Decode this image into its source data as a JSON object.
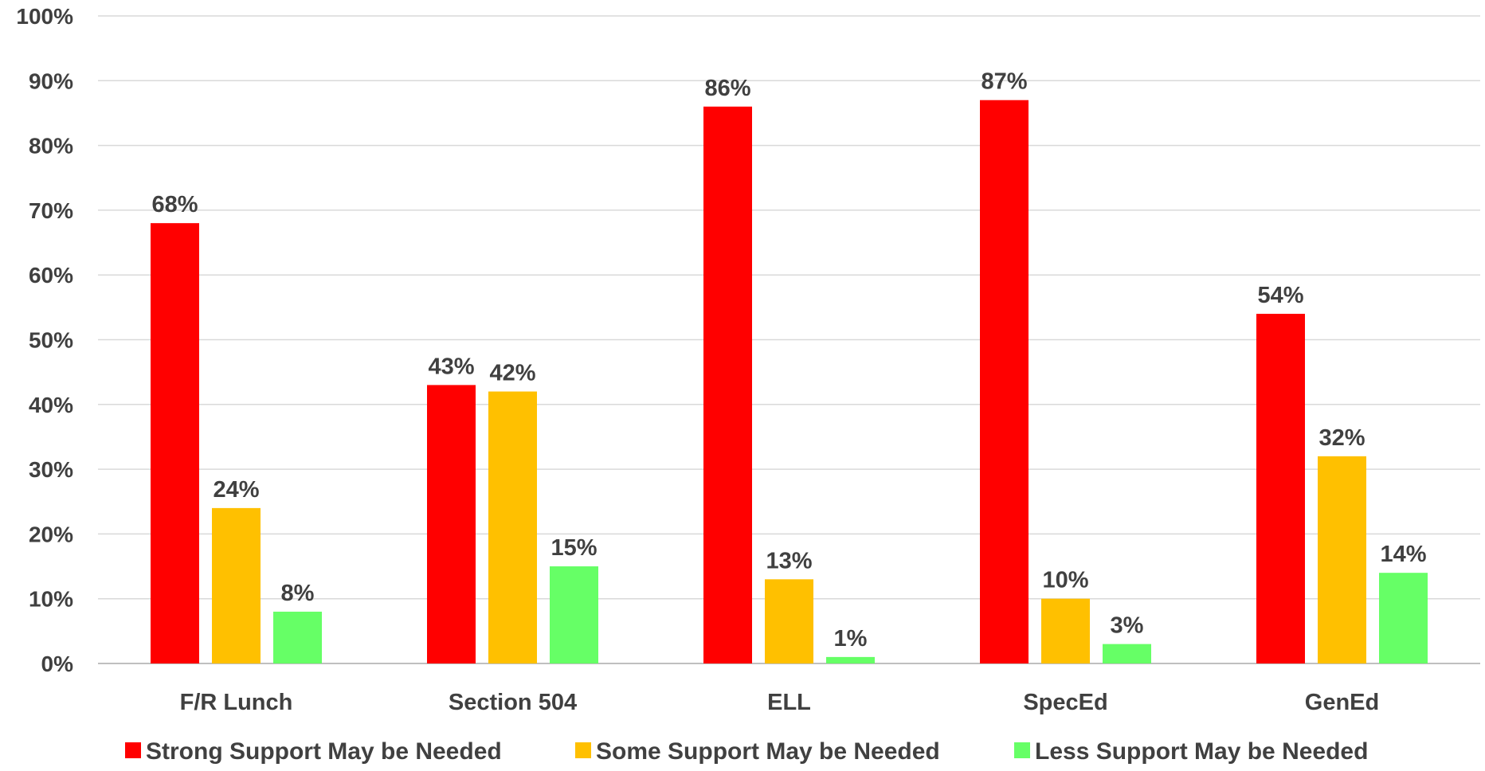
{
  "chart_data": {
    "type": "bar",
    "categories": [
      "F/R Lunch",
      "Section 504",
      "ELL",
      "SpecEd",
      "GenEd"
    ],
    "series": [
      {
        "name": "Strong Support May be Needed",
        "color": "#FF0000",
        "values": [
          68,
          43,
          86,
          87,
          54
        ],
        "labels": [
          "68%",
          "43%",
          "86%",
          "87%",
          "54%"
        ]
      },
      {
        "name": "Some Support May be Needed",
        "color": "#FFC000",
        "values": [
          24,
          42,
          13,
          10,
          32
        ],
        "labels": [
          "24%",
          "42%",
          "13%",
          "10%",
          "32%"
        ]
      },
      {
        "name": "Less Support May be Needed",
        "color": "#66FF66",
        "values": [
          8,
          15,
          1,
          3,
          14
        ],
        "labels": [
          "8%",
          "15%",
          "1%",
          "3%",
          "14%"
        ]
      }
    ],
    "yticks": [
      "0%",
      "10%",
      "20%",
      "30%",
      "40%",
      "50%",
      "60%",
      "70%",
      "80%",
      "90%",
      "100%"
    ],
    "ylim": [
      0,
      100
    ],
    "grid": true,
    "legend": "bottom"
  }
}
